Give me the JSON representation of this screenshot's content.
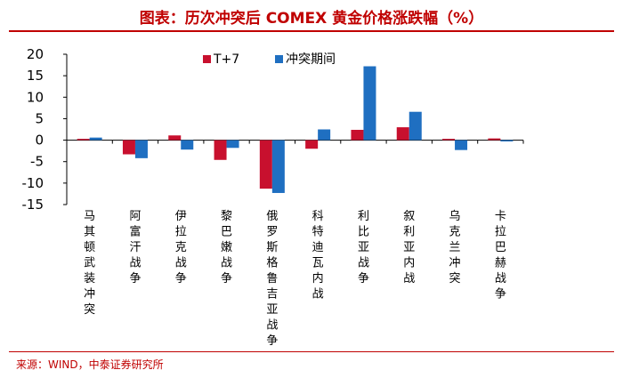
{
  "header": {
    "title": "图表：历次冲突后 COMEX 黄金价格涨跌幅（%）"
  },
  "footer": {
    "source": "来源：WIND，中泰证券研究所"
  },
  "colors": {
    "accent": "#c00000",
    "series_t7": "#c8102e",
    "series_period": "#1f6fc1"
  },
  "chart_data": {
    "type": "bar",
    "title": "历次冲突后 COMEX 黄金价格涨跌幅（%）",
    "xlabel": "",
    "ylabel": "",
    "ylim": [
      -15,
      20
    ],
    "yticks": [
      20,
      15,
      10,
      5,
      0,
      -5,
      -10,
      -15
    ],
    "grid": false,
    "legend_position": "top-center",
    "categories": [
      "马其顿武装冲突",
      "阿富汗战争",
      "伊拉克战争",
      "黎巴嫩战争",
      "俄罗斯格鲁吉亚战争",
      "科特迪瓦内战",
      "利比亚战争",
      "叙利亚内战",
      "乌克兰冲突",
      "卡拉巴赫战争"
    ],
    "series": [
      {
        "name": "T+7",
        "values": [
          0.3,
          -3.3,
          1.1,
          -4.6,
          -11.3,
          -2.0,
          2.4,
          3.0,
          0.3,
          0.4
        ]
      },
      {
        "name": "冲突期间",
        "values": [
          0.6,
          -4.2,
          -2.2,
          -1.8,
          -12.3,
          2.5,
          17.2,
          6.6,
          -2.3,
          -0.3
        ]
      }
    ]
  }
}
